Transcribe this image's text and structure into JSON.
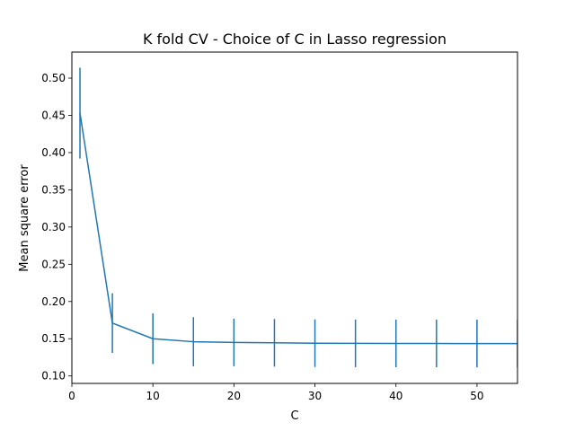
{
  "chart_data": {
    "type": "line",
    "title": "K fold CV - Choice of C in Lasso regression",
    "xlabel": "C",
    "ylabel": "Mean square error",
    "xlim": [
      0,
      55
    ],
    "ylim": [
      0.09,
      0.535
    ],
    "xticks": [
      0,
      10,
      20,
      30,
      40,
      50
    ],
    "yticks": [
      0.1,
      0.15,
      0.2,
      0.25,
      0.3,
      0.35,
      0.4,
      0.45,
      0.5
    ],
    "grid": false,
    "legend": "none",
    "color": "#1f77b4",
    "series": [
      {
        "x": [
          1,
          5,
          10,
          15,
          20,
          25,
          30,
          35,
          40,
          45,
          50,
          55
        ],
        "y": [
          0.453,
          0.171,
          0.15,
          0.146,
          0.145,
          0.1445,
          0.144,
          0.1438,
          0.1437,
          0.1436,
          0.1435,
          0.1435
        ],
        "error": [
          0.061,
          0.04,
          0.034,
          0.033,
          0.032,
          0.032,
          0.032,
          0.032,
          0.032,
          0.032,
          0.032,
          0.032
        ]
      }
    ]
  }
}
